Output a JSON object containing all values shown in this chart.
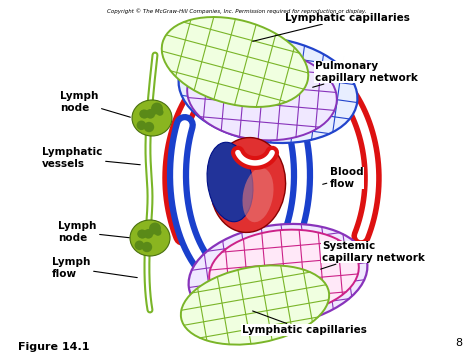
{
  "bg_color": "#ffffff",
  "copyright_text": "Copyright © The McGraw-Hill Companies, Inc. Permission required for reproduction or display.",
  "figure_label": "Figure 14.1",
  "page_number": "8",
  "colors": {
    "lymphatic_green": "#7ab528",
    "blood_red": "#dd1111",
    "blood_blue": "#1a40cc",
    "pulmonary_net_blue": "#2244cc",
    "pulmonary_net_purple": "#8833bb",
    "systemic_net_purple": "#8833bb",
    "systemic_net_pink": "#cc2288",
    "heart_red": "#e03030",
    "heart_pink": "#e87878",
    "heart_blue": "#223399",
    "lymph_node": "#8ab520"
  }
}
